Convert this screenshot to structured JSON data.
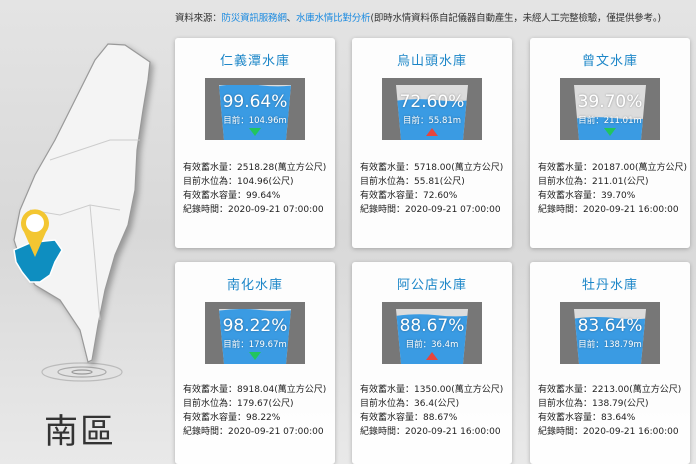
{
  "source": {
    "label": "資料來源：",
    "link1": "防災資訊服務網",
    "sep": "、",
    "link2": "水庫水情比對分析",
    "note": "(即時水情資料係自記儀器自動產生，未經人工完整檢驗，僅提供參考。)"
  },
  "region": "南區",
  "colors": {
    "water": "#3a9be3",
    "wall": "#777777",
    "down": "#22c55e",
    "up": "#e8453c",
    "title": "#1c86c8"
  },
  "labels": {
    "capacity": "有效蓄水量：",
    "level": "目前水位為：",
    "ratio": "有效蓄水容量：",
    "time": "紀錄時間："
  },
  "reservoirs": [
    {
      "name": "仁義潭水庫",
      "percent": "99.64%",
      "fill": 99.64,
      "current": "目前：104.96m",
      "trend": "down",
      "capacity": "2518.28(萬立方公尺)",
      "level": "104.96(公尺)",
      "ratio": "99.64%",
      "time": "2020-09-21 07:00:00"
    },
    {
      "name": "烏山頭水庫",
      "percent": "72.60%",
      "fill": 72.6,
      "current": "目前：55.81m",
      "trend": "up",
      "capacity": "5718.00(萬立方公尺)",
      "level": "55.81(公尺)",
      "ratio": "72.60%",
      "time": "2020-09-21 07:00:00"
    },
    {
      "name": "曾文水庫",
      "percent": "39.70%",
      "fill": 39.7,
      "current": "目前：211.01m",
      "trend": "down",
      "capacity": "20187.00(萬立方公尺)",
      "level": "211.01(公尺)",
      "ratio": "39.70%",
      "time": "2020-09-21 16:00:00"
    },
    {
      "name": "南化水庫",
      "percent": "98.22%",
      "fill": 98.22,
      "current": "目前：179.67m",
      "trend": "down",
      "capacity": "8918.04(萬立方公尺)",
      "level": "179.67(公尺)",
      "ratio": "98.22%",
      "time": "2020-09-21 07:00:00"
    },
    {
      "name": "阿公店水庫",
      "percent": "88.67%",
      "fill": 88.67,
      "current": "目前：36.4m",
      "trend": "up",
      "capacity": "1350.00(萬立方公尺)",
      "level": "36.4(公尺)",
      "ratio": "88.67%",
      "time": "2020-09-21 16:00:00"
    },
    {
      "name": "牡丹水庫",
      "percent": "83.64%",
      "fill": 83.64,
      "current": "目前：138.79m",
      "trend": "none",
      "capacity": "2213.00(萬立方公尺)",
      "level": "138.79(公尺)",
      "ratio": "83.64%",
      "time": "2020-09-21 16:00:00"
    }
  ]
}
